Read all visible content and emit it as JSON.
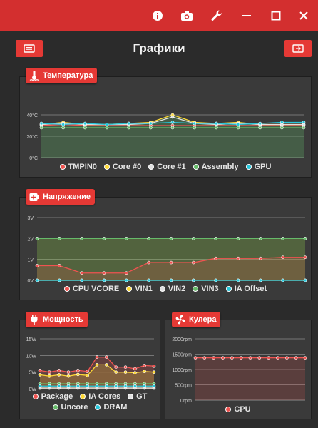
{
  "header": {
    "title": "Графики",
    "left_button_icon": "list-card-icon",
    "right_button_icon": "exit-card-icon"
  },
  "titlebar": {
    "icons": [
      "info-icon",
      "camera-icon",
      "wrench-icon",
      "minimize-icon",
      "maximize-icon",
      "close-icon"
    ],
    "color": "#d32f2f"
  },
  "colors": {
    "accent": "#e53935",
    "panel_bg": "#3a3a3a",
    "page_bg": "#2b2b2b"
  },
  "panels": {
    "temperature": {
      "title": "Температура",
      "icon": "thermometer-icon"
    },
    "voltage": {
      "title": "Напряжение",
      "icon": "battery-icon"
    },
    "power": {
      "title": "Мощность",
      "icon": "plug-icon"
    },
    "fans": {
      "title": "Кулера",
      "icon": "fan-icon"
    }
  },
  "chart_data": [
    {
      "id": "temperature",
      "type": "line",
      "title": "Температура",
      "ylim": [
        0,
        50
      ],
      "yticks": [
        "0°C",
        "20°C",
        "40°C"
      ],
      "ytick_values": [
        0,
        20,
        40
      ],
      "grid": true,
      "legend_position": "bottom",
      "x": [
        1,
        2,
        3,
        4,
        5,
        6,
        7,
        8,
        9,
        10,
        11,
        12,
        13
      ],
      "series": [
        {
          "name": "TMPIN0",
          "color": "#ef5350",
          "values": [
            30,
            31,
            30,
            30,
            30,
            30,
            30,
            30,
            30,
            30,
            30,
            30,
            30
          ]
        },
        {
          "name": "Core #0",
          "color": "#fdd835",
          "values": [
            31,
            33,
            31,
            31,
            32,
            33,
            40,
            33,
            32,
            33,
            31,
            31,
            31
          ]
        },
        {
          "name": "Core #1",
          "color": "#e0e0e0",
          "values": [
            31,
            32,
            31,
            31,
            31,
            32,
            38,
            32,
            31,
            32,
            31,
            31,
            31
          ]
        },
        {
          "name": "Assembly",
          "color": "#66bb6a",
          "values": [
            28,
            28,
            28,
            28,
            28,
            28,
            28,
            28,
            28,
            28,
            28,
            28,
            28
          ]
        },
        {
          "name": "GPU",
          "color": "#26c6da",
          "values": [
            32,
            31,
            32,
            31,
            32,
            32,
            33,
            32,
            32,
            31,
            32,
            33,
            33
          ]
        }
      ]
    },
    {
      "id": "voltage",
      "type": "line",
      "title": "Напряжение",
      "ylim": [
        0,
        3
      ],
      "yticks": [
        "0V",
        "1V",
        "2V",
        "3V"
      ],
      "ytick_values": [
        0,
        1,
        2,
        3
      ],
      "grid": true,
      "legend_position": "bottom",
      "x": [
        1,
        2,
        3,
        4,
        5,
        6,
        7,
        8,
        9,
        10,
        11,
        12,
        13
      ],
      "series": [
        {
          "name": "CPU VCORE",
          "color": "#ef5350",
          "values": [
            0.7,
            0.7,
            0.35,
            0.35,
            0.35,
            0.85,
            0.85,
            0.85,
            1.05,
            1.05,
            1.05,
            1.1,
            1.1
          ]
        },
        {
          "name": "VIN1",
          "color": "#fdd835",
          "values": [
            0,
            0,
            0,
            0,
            0,
            0,
            0,
            0,
            0,
            0,
            0,
            0,
            0
          ]
        },
        {
          "name": "VIN2",
          "color": "#e0e0e0",
          "values": [
            0,
            0,
            0,
            0,
            0,
            0,
            0,
            0,
            0,
            0,
            0,
            0,
            0
          ]
        },
        {
          "name": "VIN3",
          "color": "#66bb6a",
          "values": [
            2,
            2,
            2,
            2,
            2,
            2,
            2,
            2,
            2,
            2,
            2,
            2,
            2
          ]
        },
        {
          "name": "IA Offset",
          "color": "#26c6da",
          "values": [
            0,
            0,
            0,
            0,
            0,
            0,
            0,
            0,
            0,
            0,
            0,
            0,
            0
          ]
        }
      ]
    },
    {
      "id": "power",
      "type": "line",
      "title": "Мощность",
      "ylim": [
        0,
        15
      ],
      "yticks": [
        "0W",
        "5W",
        "10W",
        "15W"
      ],
      "ytick_values": [
        0,
        5,
        10,
        15
      ],
      "grid": true,
      "legend_position": "bottom",
      "x": [
        1,
        2,
        3,
        4,
        5,
        6,
        7,
        8,
        9,
        10,
        11,
        12,
        13
      ],
      "series": [
        {
          "name": "Package",
          "color": "#ef5350",
          "values": [
            5.5,
            5,
            5.5,
            5,
            5.5,
            5.2,
            9.5,
            9.5,
            6.5,
            6.5,
            6,
            7,
            6.8
          ]
        },
        {
          "name": "IA Cores",
          "color": "#fdd835",
          "values": [
            4.2,
            3.8,
            4.2,
            3.8,
            4.3,
            4,
            7.2,
            7.2,
            5,
            5,
            4.8,
            5.2,
            5
          ]
        },
        {
          "name": "GT",
          "color": "#e0e0e0",
          "values": [
            0.2,
            0.2,
            0.2,
            0.2,
            0.2,
            0.2,
            0.2,
            0.2,
            0.2,
            0.2,
            0.2,
            0.2,
            0.2
          ]
        },
        {
          "name": "Uncore",
          "color": "#66bb6a",
          "values": [
            1.5,
            1.5,
            1.5,
            1.5,
            1.5,
            1.5,
            1.5,
            1.5,
            1.5,
            1.5,
            1.5,
            1.5,
            1.5
          ]
        },
        {
          "name": "DRAM",
          "color": "#26c6da",
          "values": [
            0.8,
            0.8,
            0.8,
            0.8,
            0.8,
            0.8,
            0.8,
            0.8,
            0.8,
            0.8,
            0.8,
            0.8,
            0.8
          ]
        }
      ]
    },
    {
      "id": "fans",
      "type": "line",
      "title": "Кулера",
      "ylim": [
        0,
        2000
      ],
      "yticks": [
        "0rpm",
        "500rpm",
        "1000rpm",
        "1500rpm",
        "2000rpm"
      ],
      "ytick_values": [
        0,
        500,
        1000,
        1500,
        2000
      ],
      "grid": true,
      "legend_position": "bottom",
      "x": [
        1,
        2,
        3,
        4,
        5,
        6,
        7,
        8,
        9,
        10,
        11,
        12,
        13
      ],
      "series": [
        {
          "name": "CPU",
          "color": "#ef5350",
          "values": [
            1380,
            1380,
            1380,
            1380,
            1380,
            1380,
            1380,
            1380,
            1380,
            1380,
            1380,
            1380,
            1380
          ]
        }
      ]
    }
  ]
}
